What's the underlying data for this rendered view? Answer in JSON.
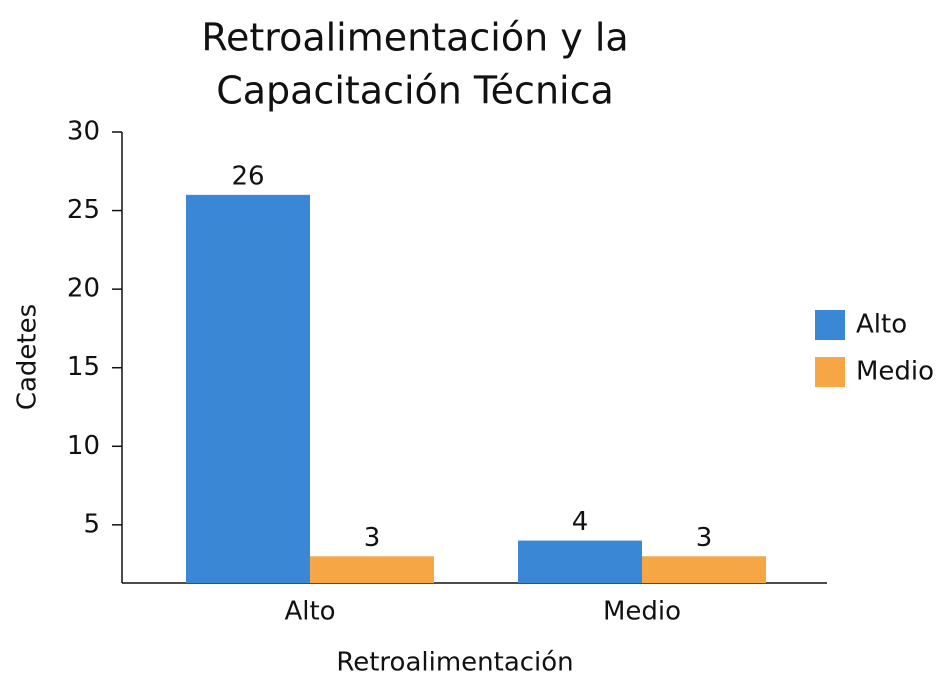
{
  "chart_data": {
    "type": "bar",
    "title": [
      "Retroalimentación y la",
      "Capacitación Técnica"
    ],
    "xlabel": "Retroalimentación",
    "ylabel": "Cadetes",
    "categories": [
      "Alto",
      "Medio"
    ],
    "series": [
      {
        "name": "Alto",
        "color": "#3a87d6",
        "values": [
          26,
          4
        ]
      },
      {
        "name": "Medio",
        "color": "#f6a645",
        "values": [
          3,
          3
        ]
      }
    ],
    "ylim": [
      1.3,
      30
    ],
    "yticks": [
      5,
      10,
      15,
      20,
      25,
      30
    ],
    "legend": "right",
    "grid": false
  }
}
